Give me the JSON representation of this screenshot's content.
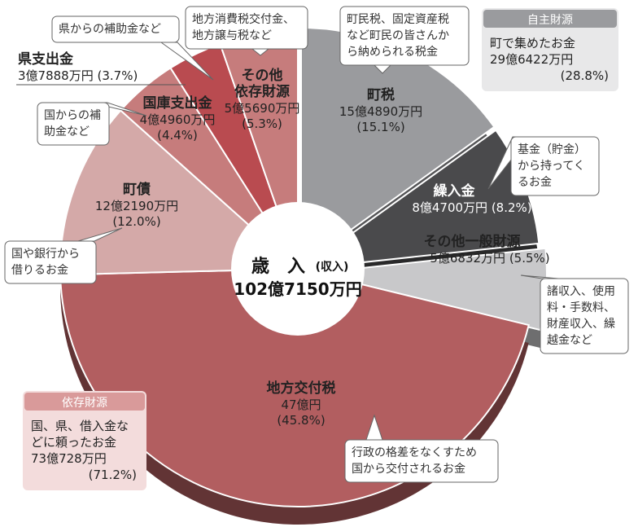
{
  "chart_data": {
    "type": "pie",
    "center": {
      "title": "歳　入",
      "title_sub": "(収入)",
      "total": "102億7150万円"
    },
    "slices": [
      {
        "key": "choze",
        "name": "町税",
        "amount": "15億4890万円",
        "percent_label": "(15.1%)",
        "value": 15.1,
        "color": "#9a9b9e",
        "text": "dark"
      },
      {
        "key": "kurikomi",
        "name": "繰入金",
        "amount": "8億4700万円",
        "percent_label": "(8.2%)",
        "value": 8.2,
        "color": "#4a4a4c",
        "text": "light"
      },
      {
        "key": "ippan",
        "name": "その他一般財源",
        "amount": "5億6832万円",
        "percent_label": "(5.5%)",
        "value": 5.5,
        "color": "#c8c8ca",
        "text": "dark"
      },
      {
        "key": "kofu",
        "name": "地方交付税",
        "amount": "47億円",
        "percent_label": "(45.8%)",
        "value": 45.8,
        "color": "#b25e60",
        "text": "dark"
      },
      {
        "key": "chosai",
        "name": "町債",
        "amount": "12億2190万円",
        "percent_label": "(12.0%)",
        "value": 12.0,
        "color": "#d4a9a8",
        "text": "dark"
      },
      {
        "key": "kokko",
        "name": "国庫支出金",
        "amount": "4億4960万円",
        "percent_label": "(4.4%)",
        "value": 4.4,
        "color": "#c67c7c",
        "text": "dark"
      },
      {
        "key": "kenshi",
        "name": "県支出金",
        "amount": "3億7888万円",
        "percent_label": "(3.7%)",
        "value": 3.7,
        "color": "#b94b50",
        "text": "dark"
      },
      {
        "key": "izon",
        "name": "その他依存財源",
        "name_line1": "その他",
        "name_line2": "依存財源",
        "amount": "5億5690万円",
        "percent_label": "(5.3%)",
        "value": 5.3,
        "color": "#c67c7c",
        "text": "dark"
      }
    ],
    "callouts": {
      "choze": [
        "町民税、固定資産税",
        "など町民の皆さんか",
        "ら納められる税金"
      ],
      "kurikomi": [
        "基金（貯金）",
        "から持ってく",
        "るお金"
      ],
      "ippan": [
        "諸収入、使用",
        "料・手数料、",
        "財産収入、繰",
        "越金など"
      ],
      "kofu": [
        "行政の格差をなくすため",
        "国から交付されるお金"
      ],
      "chosai": [
        "国や銀行から",
        "借りるお金"
      ],
      "kokko": [
        "国からの補",
        "助金など"
      ],
      "kenshi": [
        "県からの補助金など"
      ],
      "izon": [
        "地方消費税交付金、",
        "地方譲与税など"
      ]
    },
    "groups": [
      {
        "key": "jishu",
        "title": "自主財源",
        "lines": [
          "町で集めたお金",
          "29億6422万円",
          "(28.8%)"
        ]
      },
      {
        "key": "izon_zaigen",
        "title": "依存財源",
        "lines": [
          "国、県、借入金な",
          "どに頼ったお金",
          "73億728万円",
          "(71.2%)"
        ]
      }
    ]
  }
}
